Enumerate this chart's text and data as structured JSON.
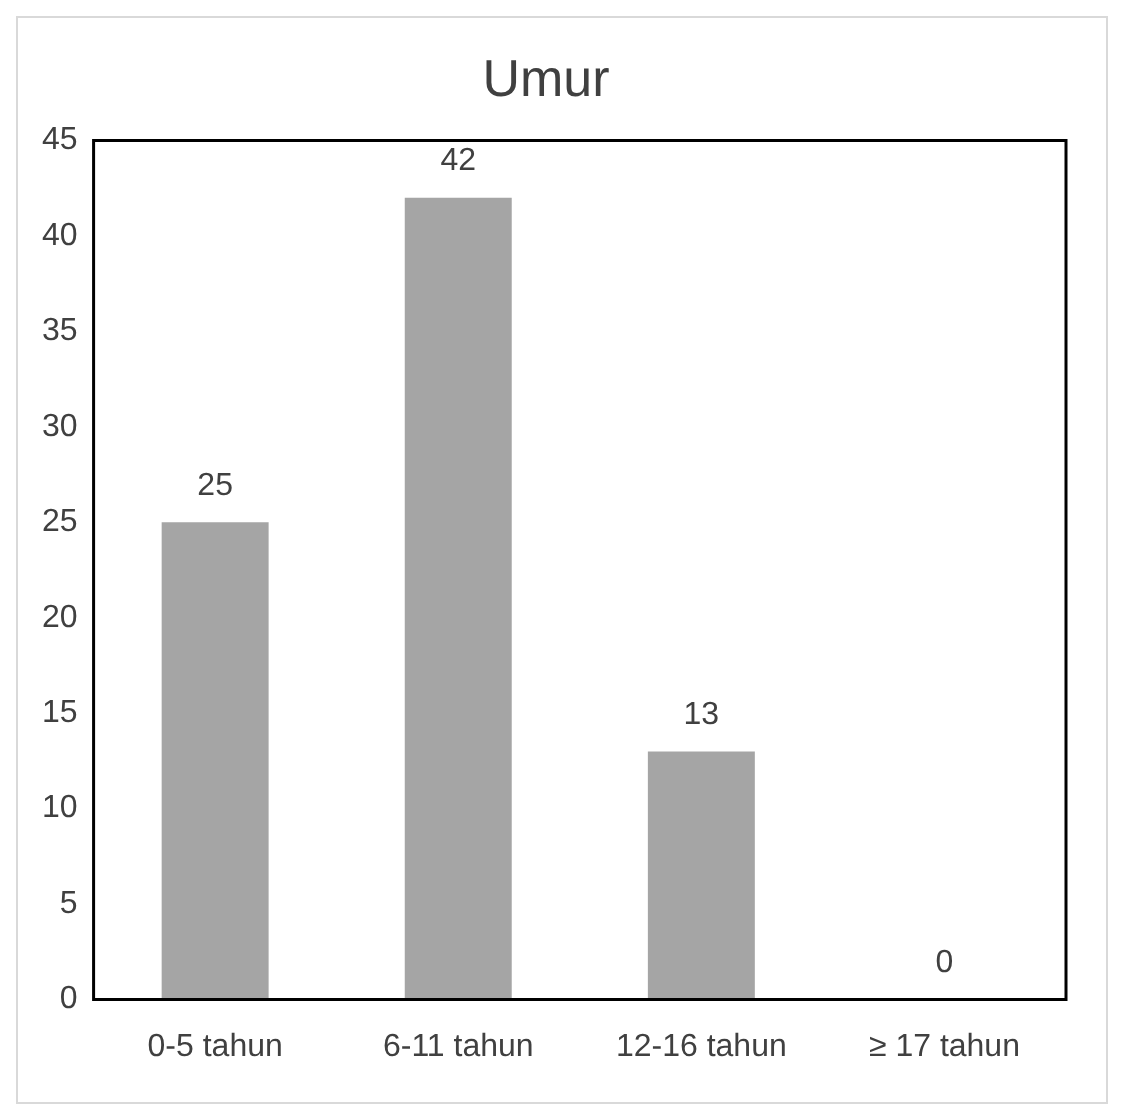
{
  "chart_data": {
    "type": "bar",
    "title": "Umur",
    "categories": [
      "0-5 tahun",
      "6-11 tahun",
      "12-16 tahun",
      "≥ 17 tahun"
    ],
    "values": [
      25,
      42,
      13,
      0
    ],
    "color": "#a5a5a5",
    "ylim": [
      0,
      45
    ],
    "yticks": [
      0,
      5,
      10,
      15,
      20,
      25,
      30,
      35,
      40,
      45
    ],
    "grid": false,
    "legend": false,
    "data_labels": true
  }
}
